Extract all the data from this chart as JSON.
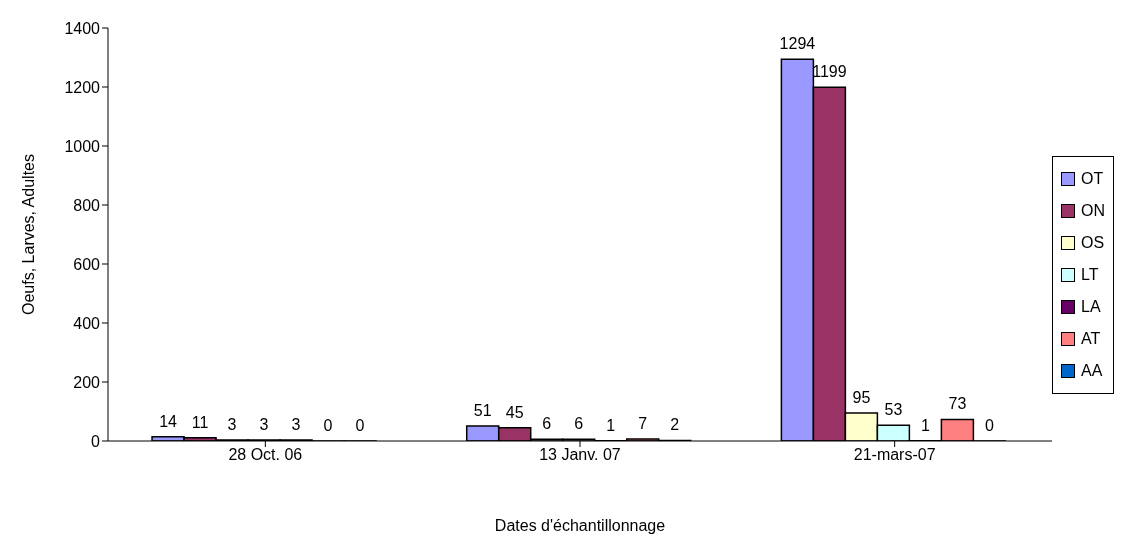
{
  "chart_data": {
    "type": "bar",
    "xlabel": "Dates d'échantillonnage",
    "ylabel": "Oeufs, Larves, Adultes",
    "categories": [
      "28 Oct. 06",
      "13 Janv. 07",
      "21-mars-07"
    ],
    "series": [
      {
        "name": "OT",
        "color": "#9999ff",
        "values": [
          14,
          51,
          1294
        ]
      },
      {
        "name": "ON",
        "color": "#993366",
        "values": [
          11,
          45,
          1199
        ]
      },
      {
        "name": "OS",
        "color": "#ffffcc",
        "values": [
          3,
          6,
          95
        ]
      },
      {
        "name": "LT",
        "color": "#ccffff",
        "values": [
          3,
          6,
          53
        ]
      },
      {
        "name": "LA",
        "color": "#660066",
        "values": [
          3,
          1,
          1
        ]
      },
      {
        "name": "AT",
        "color": "#ff8080",
        "values": [
          0,
          7,
          73
        ]
      },
      {
        "name": "AA",
        "color": "#0066cc",
        "values": [
          0,
          2,
          0
        ]
      }
    ],
    "ylim": [
      0,
      1400
    ],
    "yticks": [
      0,
      200,
      400,
      600,
      800,
      1000,
      1200,
      1400
    ],
    "grid": false,
    "legend": "right",
    "data_labels": true
  }
}
